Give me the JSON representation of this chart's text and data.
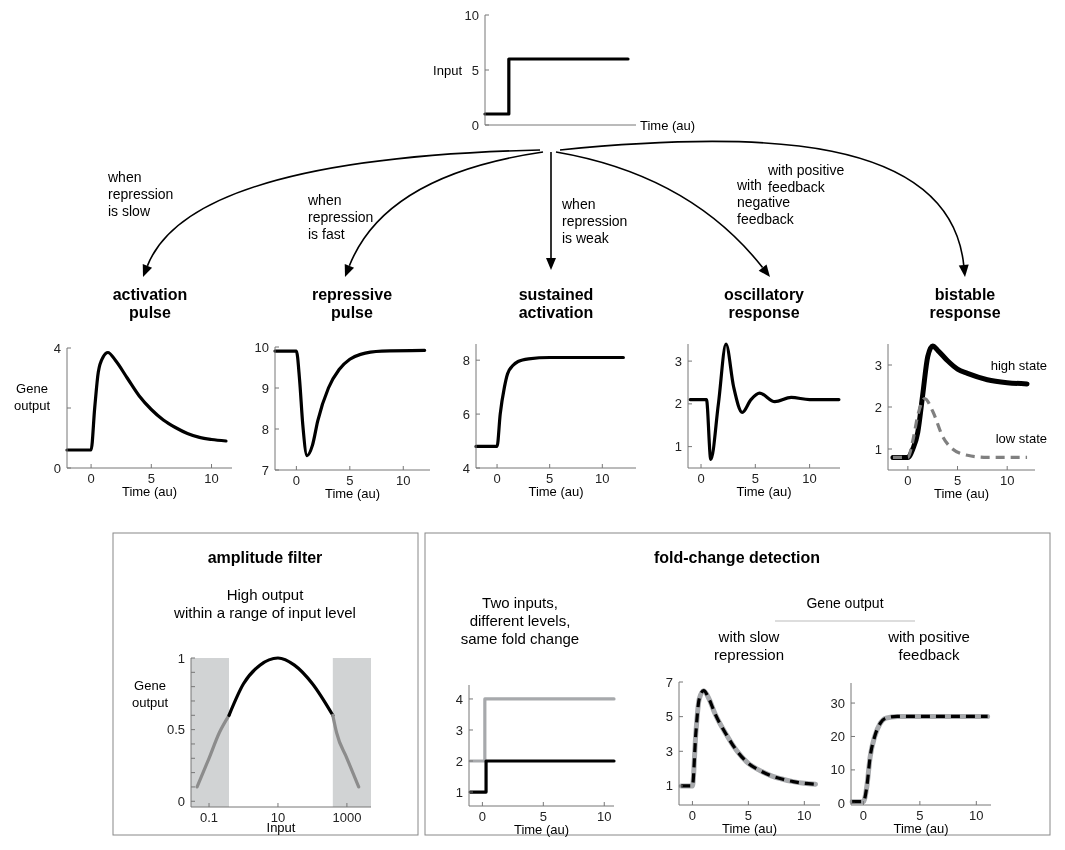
{
  "chart_data": [
    {
      "type": "step",
      "ylabel": "Input",
      "xlabel": "Time (au)",
      "categories": [
        null,
        null,
        null,
        null,
        null,
        null,
        null
      ],
      "values": [
        1,
        6,
        6,
        6,
        6,
        6,
        6
      ],
      "color": "#000000",
      "ylim": [
        0,
        10
      ],
      "yticks": [
        0,
        5,
        10
      ],
      "annotations": [
        "when\nrepression\nis slow",
        "when\nrepression\nis fast",
        "when\nrepression\nis weak",
        "with\nnegative\nfeedback",
        "with positive\nfeedback"
      ]
    },
    {
      "type": "line",
      "title": "activation\npulse",
      "ylabel": "Gene\noutput",
      "xlabel": "Time (au)",
      "x": [
        -2,
        0,
        0.3,
        0.6,
        1,
        1.4,
        2,
        3,
        4,
        5,
        6,
        7,
        8,
        9,
        10,
        11.2
      ],
      "values": [
        0.6,
        0.6,
        2.0,
        3.2,
        3.7,
        3.85,
        3.6,
        3.0,
        2.4,
        1.95,
        1.6,
        1.35,
        1.15,
        1.02,
        0.95,
        0.9
      ],
      "color": "#000000",
      "xlim": [
        -2,
        11.7
      ],
      "xticks": [
        0,
        5,
        10
      ],
      "ylim": [
        0,
        4
      ],
      "yticks": [
        0,
        {
          "value": 2,
          "label": null
        },
        4
      ]
    },
    {
      "type": "line",
      "title": "repressive\npulse",
      "xlabel": "Time (au)",
      "x": [
        -2,
        0,
        0.3,
        0.6,
        1,
        1.5,
        2,
        3,
        4,
        5,
        6,
        8,
        12
      ],
      "values": [
        9.9,
        9.9,
        9.2,
        8.1,
        7.35,
        7.6,
        8.2,
        9.0,
        9.45,
        9.7,
        9.82,
        9.9,
        9.92
      ],
      "color": "#000000",
      "xlim": [
        -2,
        12.5
      ],
      "xticks": [
        0,
        5,
        10
      ],
      "ylim": [
        7,
        10
      ],
      "yticks": [
        7,
        8,
        9,
        10
      ]
    },
    {
      "type": "line",
      "title": "sustained\nactivation",
      "xlabel": "Time (au)",
      "x": [
        -2,
        0,
        0.3,
        0.7,
        1,
        1.5,
        2,
        3,
        5,
        12
      ],
      "values": [
        4.8,
        4.8,
        6.0,
        7.0,
        7.5,
        7.8,
        7.95,
        8.05,
        8.1,
        8.1
      ],
      "color": "#000000",
      "xlim": [
        -2,
        13.2
      ],
      "xticks": [
        0,
        5,
        10
      ],
      "ylim": [
        4,
        8.6
      ],
      "yticks": [
        4,
        6,
        8
      ]
    },
    {
      "type": "line",
      "title": "oscillatory\nresponse",
      "xlabel": "Time (au)",
      "x": [
        -1,
        0.5,
        0.9,
        1.6,
        2.3,
        3,
        3.8,
        4.6,
        5.4,
        6.8,
        8.3,
        10,
        12.7
      ],
      "values": [
        2.1,
        2.1,
        0.7,
        2.0,
        3.4,
        2.4,
        1.8,
        2.1,
        2.25,
        2.05,
        2.15,
        2.1,
        2.1
      ],
      "color": "#000000",
      "xlim": [
        -1.2,
        12.8
      ],
      "xticks": [
        0,
        5,
        10
      ],
      "ylim": [
        0.5,
        3.4
      ],
      "yticks": [
        1,
        2,
        3
      ]
    },
    {
      "type": "line",
      "title": "bistable\nresponse",
      "xlabel": "Time (au)",
      "xlim": [
        -2,
        12.8
      ],
      "xticks": [
        0,
        5,
        10
      ],
      "ylim": [
        0.5,
        3.5
      ],
      "yticks": [
        1,
        2,
        3
      ],
      "series": [
        {
          "name": "high state",
          "color": "#000000",
          "x": [
            -1.5,
            0,
            0.5,
            1,
            1.5,
            2,
            2.5,
            3,
            4,
            5,
            6,
            8,
            10,
            12
          ],
          "values": [
            0.8,
            0.8,
            1.0,
            1.4,
            2.3,
            3.2,
            3.45,
            3.35,
            3.1,
            2.9,
            2.8,
            2.65,
            2.58,
            2.55
          ]
        },
        {
          "name": "low state",
          "color": "#808080",
          "line_style": "dashed",
          "x": [
            -1.5,
            0,
            0.5,
            1,
            1.7,
            2.5,
            3.5,
            4.5,
            6,
            8,
            12
          ],
          "values": [
            0.8,
            0.8,
            1.2,
            1.8,
            2.2,
            1.9,
            1.3,
            1.0,
            0.85,
            0.8,
            0.8
          ]
        }
      ]
    },
    {
      "type": "line",
      "title": "amplitude filter",
      "subtitle": "High output\nwithin a range of input level",
      "ylabel": "Gene\noutput",
      "xlabel": "Input",
      "log": "x",
      "xlim": [
        0.03,
        5000
      ],
      "xticks": [
        0.1,
        10,
        1000
      ],
      "ylim": [
        -0.04,
        1
      ],
      "yticks": [
        0,
        {
          "value": 0.1,
          "label": null
        },
        {
          "value": 0.2,
          "label": null
        },
        {
          "value": 0.3,
          "label": null
        },
        {
          "value": 0.4,
          "label": null
        },
        0.5,
        {
          "value": 0.6,
          "label": null
        },
        {
          "value": 0.7,
          "label": null
        },
        {
          "value": 0.8,
          "label": null
        },
        {
          "value": 0.9,
          "label": null
        },
        1
      ],
      "bands": [
        {
          "axis": "x",
          "from": 0.03,
          "to": 0.38,
          "color": "#d1d3d4"
        },
        {
          "axis": "x",
          "from": 390,
          "to": 5000,
          "color": "#d1d3d4"
        }
      ],
      "series": [
        {
          "color": "#8c8c8c",
          "x": [
            0.045,
            0.1,
            0.2,
            0.38
          ],
          "values": [
            0.1,
            0.3,
            0.48,
            0.6
          ]
        },
        {
          "color": "#000000",
          "x": [
            0.38,
            1,
            3,
            10,
            30,
            100,
            390
          ],
          "values": [
            0.6,
            0.82,
            0.95,
            1,
            0.95,
            0.82,
            0.6
          ]
        },
        {
          "color": "#8c8c8c",
          "x": [
            390,
            500,
            1000,
            2200
          ],
          "values": [
            0.6,
            0.48,
            0.3,
            0.1
          ]
        }
      ]
    },
    {
      "type": "step",
      "subtitle": "Two inputs,\ndifferent levels,\nsame fold change",
      "xlabel": "Time (au)",
      "xlim": [
        -1.1,
        10.8
      ],
      "xticks": [
        0,
        5,
        10
      ],
      "ylim": [
        0.55,
        4.45
      ],
      "yticks": [
        1,
        2,
        3,
        4
      ],
      "series": [
        {
          "color": "#a7a9ac",
          "x": [
            -1,
            0.2,
            10.8
          ],
          "values": [
            2,
            4,
            4
          ]
        },
        {
          "color": "#000000",
          "x": [
            -1,
            0.3,
            10.8
          ],
          "values": [
            1,
            2,
            2
          ]
        }
      ]
    },
    {
      "type": "line",
      "title": "fold-change detection",
      "subtitle": "with slow\nrepression",
      "xlabel": "Time (au)",
      "annotations": [
        "Gene output"
      ],
      "x": [
        -1,
        0,
        0.3,
        0.6,
        1,
        1.5,
        2,
        3,
        4,
        5,
        6,
        7,
        8,
        9,
        10,
        11
      ],
      "xlim": [
        -1.2,
        11.4
      ],
      "xticks": [
        0,
        5,
        10
      ],
      "ylim": [
        -0.1,
        7
      ],
      "yticks": [
        1,
        3,
        5,
        7
      ],
      "series": [
        {
          "color": "#a7a9ac",
          "values": [
            1,
            1,
            4,
            6,
            6.5,
            6.0,
            5.2,
            4.0,
            3.0,
            2.3,
            1.9,
            1.6,
            1.4,
            1.25,
            1.15,
            1.1
          ]
        },
        {
          "color": "#000000",
          "line_style": "dashed",
          "values": [
            1,
            1,
            4,
            6,
            6.5,
            6.0,
            5.2,
            4.0,
            3.0,
            2.3,
            1.9,
            1.6,
            1.4,
            1.25,
            1.15,
            1.1
          ]
        }
      ]
    },
    {
      "type": "line",
      "subtitle": "with positive\nfeedback",
      "xlabel": "Time (au)",
      "x": [
        -1,
        0,
        0.3,
        0.6,
        1,
        1.5,
        2,
        3,
        11
      ],
      "xlim": [
        -1.1,
        11.3
      ],
      "xticks": [
        0,
        5,
        10
      ],
      "ylim": [
        -0.5,
        36
      ],
      "yticks": [
        0,
        10,
        20,
        30
      ],
      "series": [
        {
          "color": "#a7a9ac",
          "values": [
            0.5,
            0.5,
            5,
            14,
            20,
            24,
            25.5,
            26,
            26
          ]
        },
        {
          "color": "#000000",
          "line_style": "dashed",
          "values": [
            0.5,
            0.5,
            5,
            14,
            20,
            24,
            25.5,
            26,
            26
          ]
        }
      ]
    }
  ]
}
